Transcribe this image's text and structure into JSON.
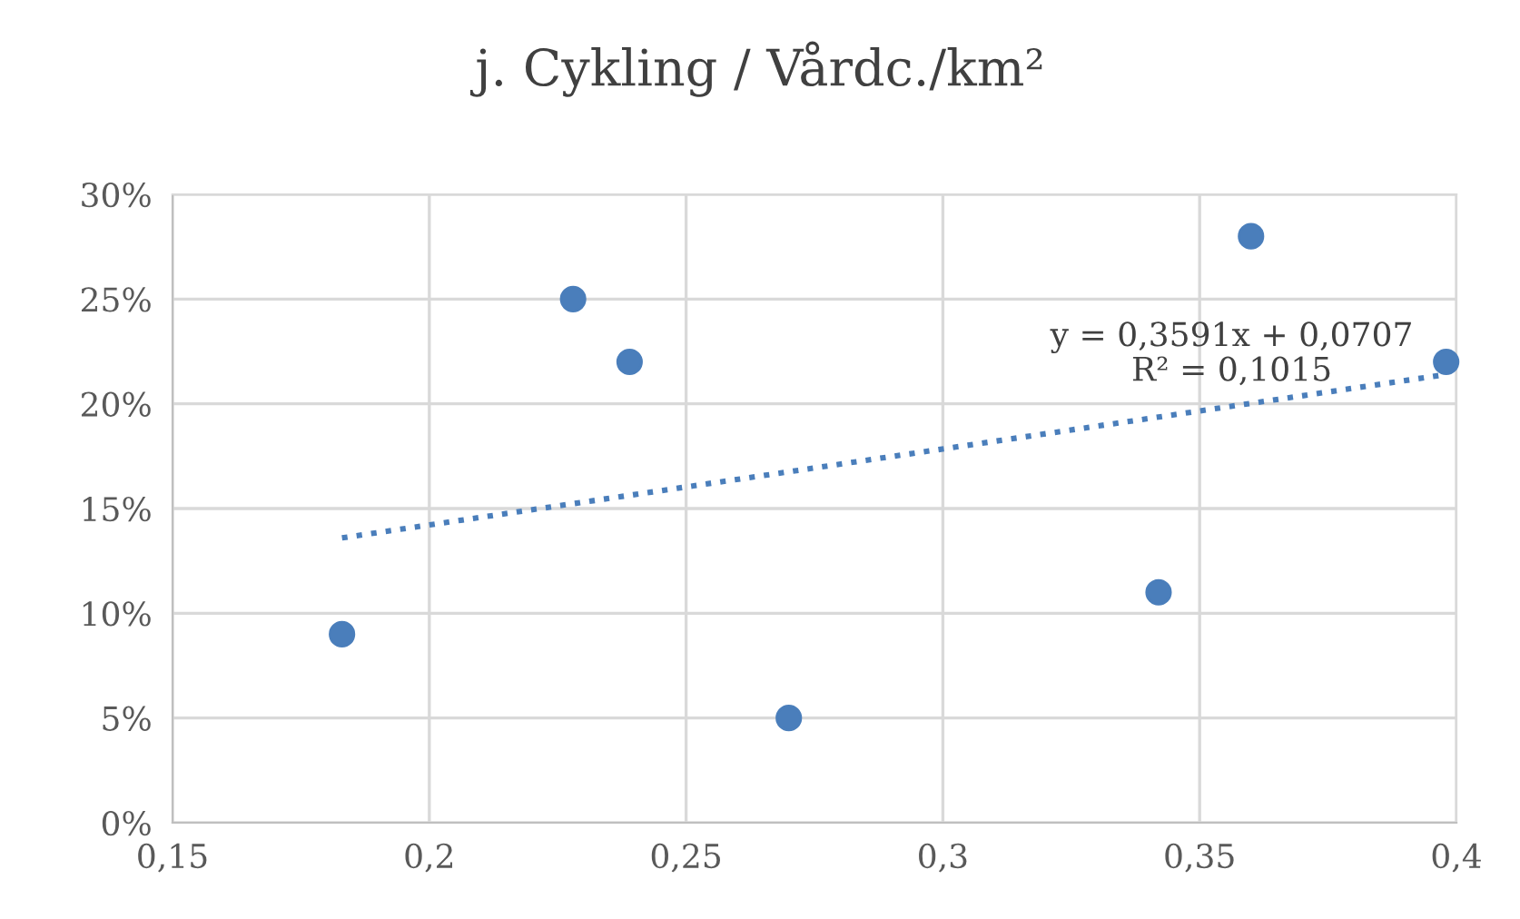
{
  "chart_data": {
    "type": "scatter",
    "title": "j. Cykling / Vårdc./km²",
    "series": [
      {
        "color": "#4a7ebb",
        "marker": "circle",
        "x": [
          0.183,
          0.228,
          0.239,
          0.27,
          0.342,
          0.36,
          0.398
        ],
        "values": [
          9,
          25,
          22,
          5,
          11,
          28,
          22
        ]
      },
      {
        "type": "line",
        "color": "#4a7ebb",
        "line_style": "dotted",
        "marker": "none",
        "x": [
          0.183,
          0.398
        ],
        "values": [
          13.6,
          21.4
        ]
      }
    ],
    "xlim": [
      0.15,
      0.4
    ],
    "xticks": [
      {
        "value": 0.15,
        "label": "0,15"
      },
      {
        "value": 0.2,
        "label": "0,2"
      },
      {
        "value": 0.25,
        "label": "0,25"
      },
      {
        "value": 0.3,
        "label": "0,3"
      },
      {
        "value": 0.35,
        "label": "0,35"
      },
      {
        "value": 0.4,
        "label": "0,4"
      }
    ],
    "ylim": [
      0,
      30
    ],
    "yticks": [
      {
        "value": 0,
        "label": "0%"
      },
      {
        "value": 5,
        "label": "5%"
      },
      {
        "value": 10,
        "label": "10%"
      },
      {
        "value": 15,
        "label": "15%"
      },
      {
        "value": 20,
        "label": "20%"
      },
      {
        "value": 25,
        "label": "25%"
      },
      {
        "value": 30,
        "label": "30%"
      }
    ],
    "annotations": [
      "y = 0,3591x + 0,0707\nR² = 0,1015"
    ],
    "grid": true
  }
}
